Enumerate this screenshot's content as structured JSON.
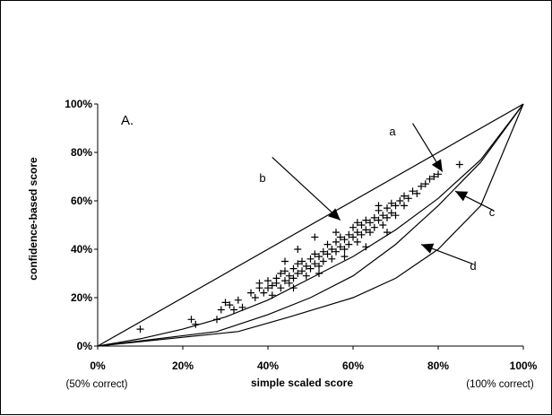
{
  "chart_data": {
    "type": "scatter",
    "title": "",
    "panel_label": "A.",
    "xlabel": "simple scaled score",
    "ylabel": "confidence-based score",
    "xlim": [
      0,
      100
    ],
    "ylim": [
      0,
      100
    ],
    "x_ticks": [
      "0%",
      "20%",
      "40%",
      "60%",
      "80%",
      "100%"
    ],
    "y_ticks": [
      "0%",
      "20%",
      "40%",
      "60%",
      "80%",
      "100%"
    ],
    "x_notes": {
      "left": "(50% correct)",
      "right": "(100% correct)"
    },
    "grid": false,
    "legend": "none",
    "colors": {
      "ink": "#000000",
      "background": "#ffffff"
    },
    "annotations": [
      {
        "label": "a",
        "tail": [
          74,
          92
        ],
        "head": [
          81,
          72
        ]
      },
      {
        "label": "b",
        "tail": [
          41,
          78
        ],
        "head": [
          57,
          52
        ]
      },
      {
        "label": "c",
        "tail": [
          93,
          56
        ],
        "head": [
          84,
          64
        ]
      },
      {
        "label": "d",
        "tail": [
          88,
          34
        ],
        "head": [
          76,
          42
        ]
      }
    ],
    "series": [
      {
        "style": "line",
        "points": [
          [
            0,
            0
          ],
          [
            100,
            100
          ]
        ]
      },
      {
        "style": "line",
        "points": [
          [
            0,
            0
          ],
          [
            10,
            3
          ],
          [
            20,
            7
          ],
          [
            30,
            12
          ],
          [
            40,
            19
          ],
          [
            50,
            28
          ],
          [
            60,
            37
          ],
          [
            70,
            48
          ],
          [
            80,
            61
          ],
          [
            90,
            77
          ],
          [
            100,
            100
          ]
        ]
      },
      {
        "style": "line",
        "points": [
          [
            0,
            0
          ],
          [
            28,
            6
          ],
          [
            40,
            13
          ],
          [
            50,
            20
          ],
          [
            60,
            29
          ],
          [
            70,
            42
          ],
          [
            80,
            58
          ],
          [
            90,
            76
          ],
          [
            100,
            100
          ]
        ]
      },
      {
        "style": "line",
        "points": [
          [
            0,
            0
          ],
          [
            33,
            6
          ],
          [
            45,
            12
          ],
          [
            60,
            20
          ],
          [
            70,
            28
          ],
          [
            80,
            40
          ],
          [
            90,
            58
          ],
          [
            100,
            100
          ]
        ]
      },
      {
        "style": "marker",
        "marker": "+",
        "points": [
          [
            10,
            7
          ],
          [
            22,
            11
          ],
          [
            23,
            9
          ],
          [
            28,
            11
          ],
          [
            29,
            15
          ],
          [
            30,
            18
          ],
          [
            31,
            17
          ],
          [
            32,
            15
          ],
          [
            33,
            19
          ],
          [
            34,
            16
          ],
          [
            37,
            20
          ],
          [
            38,
            24
          ],
          [
            38,
            26
          ],
          [
            39,
            22
          ],
          [
            40,
            27
          ],
          [
            40,
            24
          ],
          [
            41,
            25
          ],
          [
            41,
            21
          ],
          [
            42,
            28
          ],
          [
            42,
            26
          ],
          [
            43,
            24
          ],
          [
            43,
            30
          ],
          [
            44,
            27
          ],
          [
            44,
            31
          ],
          [
            45,
            29
          ],
          [
            45,
            26
          ],
          [
            46,
            32
          ],
          [
            46,
            28
          ],
          [
            47,
            30
          ],
          [
            47,
            34
          ],
          [
            48,
            31
          ],
          [
            48,
            35
          ],
          [
            49,
            33
          ],
          [
            49,
            29
          ],
          [
            50,
            36
          ],
          [
            50,
            32
          ],
          [
            51,
            34
          ],
          [
            51,
            38
          ],
          [
            52,
            37
          ],
          [
            52,
            33
          ],
          [
            53,
            39
          ],
          [
            53,
            35
          ],
          [
            54,
            38
          ],
          [
            54,
            42
          ],
          [
            55,
            40
          ],
          [
            55,
            36
          ],
          [
            56,
            43
          ],
          [
            56,
            39
          ],
          [
            57,
            41
          ],
          [
            57,
            45
          ],
          [
            58,
            44
          ],
          [
            58,
            40
          ],
          [
            59,
            46
          ],
          [
            59,
            42
          ],
          [
            60,
            45
          ],
          [
            60,
            49
          ],
          [
            61,
            47
          ],
          [
            61,
            43
          ],
          [
            62,
            50
          ],
          [
            62,
            46
          ],
          [
            63,
            48
          ],
          [
            63,
            52
          ],
          [
            64,
            51
          ],
          [
            64,
            47
          ],
          [
            65,
            53
          ],
          [
            65,
            49
          ],
          [
            66,
            52
          ],
          [
            66,
            56
          ],
          [
            67,
            54
          ],
          [
            67,
            50
          ],
          [
            68,
            57
          ],
          [
            68,
            53
          ],
          [
            69,
            55
          ],
          [
            69,
            59
          ],
          [
            70,
            58
          ],
          [
            70,
            54
          ],
          [
            71,
            60
          ],
          [
            72,
            62
          ],
          [
            72,
            58
          ],
          [
            73,
            61
          ],
          [
            74,
            64
          ],
          [
            75,
            63
          ],
          [
            76,
            66
          ],
          [
            77,
            67
          ],
          [
            78,
            69
          ],
          [
            79,
            70
          ],
          [
            80,
            71
          ],
          [
            85,
            75
          ],
          [
            36,
            22
          ],
          [
            44,
            35
          ],
          [
            47,
            40
          ],
          [
            51,
            45
          ],
          [
            56,
            47
          ],
          [
            61,
            51
          ],
          [
            66,
            58
          ],
          [
            46,
            24
          ],
          [
            52,
            30
          ],
          [
            58,
            37
          ],
          [
            63,
            41
          ],
          [
            68,
            47
          ]
        ]
      }
    ]
  }
}
